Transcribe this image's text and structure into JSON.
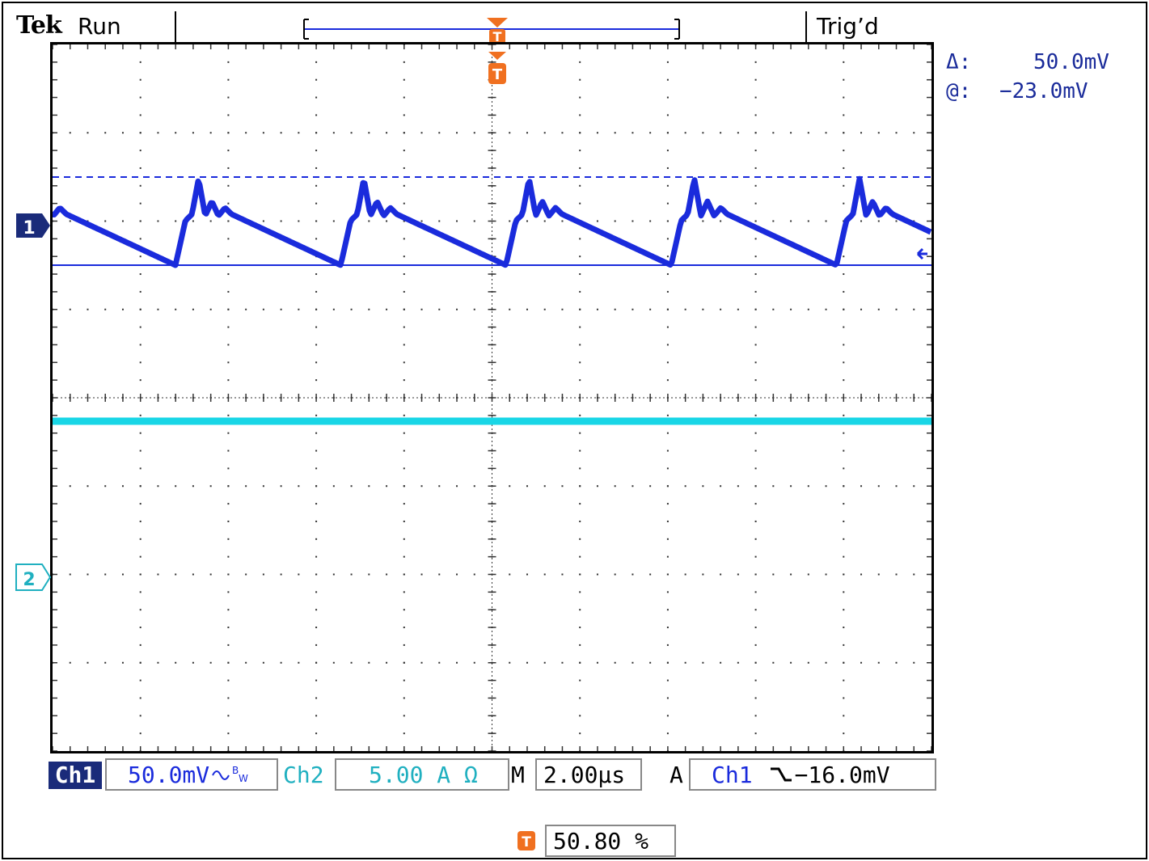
{
  "header": {
    "brand": "Tek",
    "run_state": "Run",
    "trigger_state": "Trig’d"
  },
  "cursor_readout": {
    "delta_label": "Δ:",
    "delta_value": "50.0mV",
    "at_label": "@:",
    "at_value": "−23.0mV"
  },
  "markers": {
    "trigger_marker": "T",
    "ch1_marker": "1",
    "ch2_marker": "2"
  },
  "status_bar": {
    "ch1_label": "Ch1",
    "ch1_scale": "50.0mV",
    "ch1_coupling_icon": "ac-bandwidth-icon",
    "ch2_label": "Ch2",
    "ch2_scale": "5.00 A Ω",
    "timebase_label": "M",
    "timebase_value": "2.00µs",
    "trigger_mode_label": "A",
    "trigger_source": "Ch1",
    "trigger_slope_icon": "falling-edge-icon",
    "trigger_level": "−16.0mV",
    "trigger_position_value": "50.80 %"
  },
  "colors": {
    "ch1": "#1a2bdc",
    "ch2": "#19d6e6",
    "trigger": "#f07020",
    "grid": "#333333"
  },
  "waveform": {
    "ch1_description_kind": "ripple",
    "period_divisions": 1.88,
    "ch2_level_divisions": -0.2
  }
}
